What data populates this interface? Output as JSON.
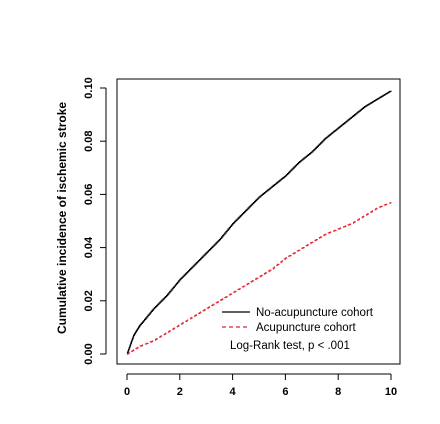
{
  "chart_data": {
    "type": "line",
    "title": "",
    "xlabel": "",
    "ylabel": "Cumulative incidence of ischemic stroke",
    "xlim": [
      0,
      10
    ],
    "ylim": [
      0,
      0.1
    ],
    "x_ticks": [
      0,
      2,
      4,
      6,
      8,
      10
    ],
    "x_tick_labels": [
      "0",
      "2",
      "4",
      "6",
      "8",
      "10"
    ],
    "y_ticks": [
      0,
      0.02,
      0.04,
      0.06,
      0.08,
      0.1
    ],
    "y_tick_labels": [
      "0.00",
      "0.02",
      "0.04",
      "0.06",
      "0.08",
      "0.10"
    ],
    "grid": false,
    "legend_position": "bottom-right",
    "annotation": "Log-Rank test, p < .001",
    "series": [
      {
        "name": "No-acupuncture cohort",
        "color": "#000000",
        "style": "solid",
        "x": [
          0,
          0.25,
          0.5,
          1,
          1.5,
          2,
          2.5,
          3,
          3.5,
          4,
          4.5,
          5,
          5.5,
          6,
          6.5,
          7,
          7.5,
          8,
          8.5,
          9,
          9.5,
          10
        ],
        "y": [
          0,
          0.007,
          0.011,
          0.017,
          0.022,
          0.028,
          0.033,
          0.038,
          0.043,
          0.049,
          0.054,
          0.059,
          0.063,
          0.067,
          0.072,
          0.076,
          0.081,
          0.085,
          0.089,
          0.093,
          0.096,
          0.099
        ]
      },
      {
        "name": "Acupuncture cohort",
        "color": "#e0242c",
        "style": "dashed",
        "x": [
          0,
          0.5,
          1,
          1.5,
          2,
          2.5,
          3,
          3.5,
          4,
          4.5,
          5,
          5.5,
          6,
          6.5,
          7,
          7.5,
          8,
          8.5,
          9,
          9.5,
          10
        ],
        "y": [
          0,
          0.003,
          0.005,
          0.008,
          0.011,
          0.014,
          0.017,
          0.02,
          0.023,
          0.026,
          0.029,
          0.032,
          0.036,
          0.039,
          0.042,
          0.045,
          0.047,
          0.049,
          0.052,
          0.055,
          0.057
        ]
      }
    ]
  }
}
